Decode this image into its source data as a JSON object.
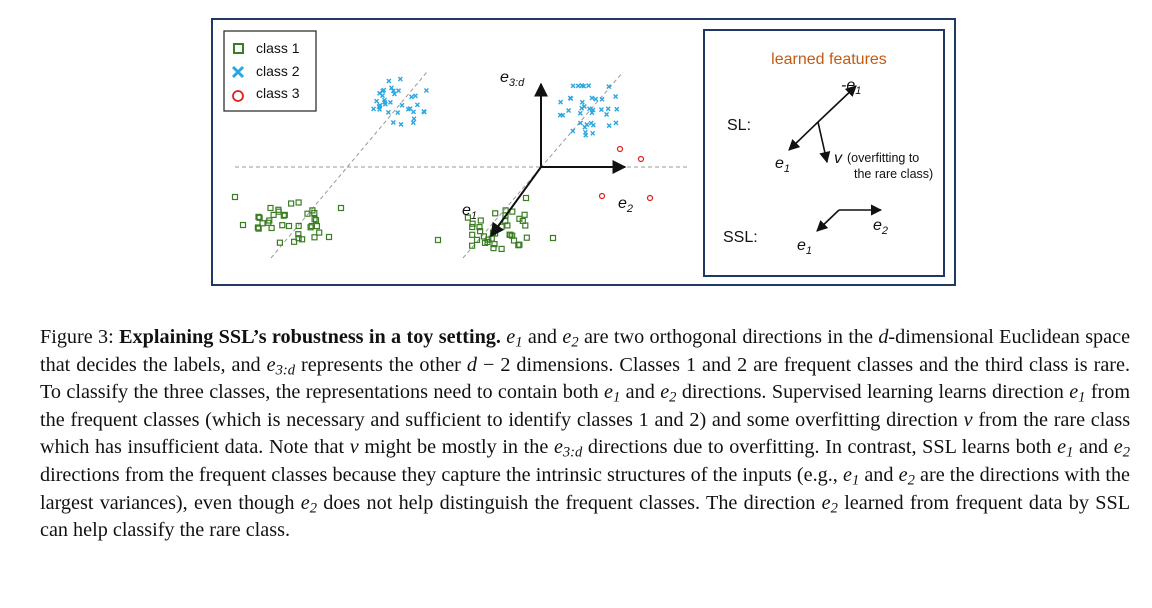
{
  "figure": {
    "legend": [
      {
        "label": "class 1",
        "marker": "square",
        "color": "#3a7d23"
      },
      {
        "label": "class 2",
        "marker": "x",
        "color": "#2aa6e0"
      },
      {
        "label": "class 3",
        "marker": "circle",
        "color": "#e02020"
      }
    ],
    "axis_labels": {
      "e3d_base": "e",
      "e3d_sub": "3:d",
      "e1_base": "e",
      "e1_sub": "1",
      "e2_base": "e",
      "e2_sub": "2"
    },
    "panel": {
      "title": "learned features",
      "title_color": "#c55a11",
      "sl_label": "SL:",
      "ssl_label": "SSL:",
      "neg_e1": "-e",
      "neg_e1_sub": "1",
      "sl_e1": "e",
      "sl_e1_sub": "1",
      "v_label": "v",
      "v_note_line1": "(overfitting to",
      "v_note_line2": "the rare class)",
      "ssl_e2": "e",
      "ssl_e2_sub": "2",
      "ssl_e1": "e",
      "ssl_e1_sub": "1"
    },
    "colors": {
      "frame": "#1f3864",
      "class1": "#3a7d23",
      "class2": "#2aa6e0",
      "class3": "#e02020",
      "dashed": "#999999"
    }
  },
  "caption": {
    "label": "Figure 3:",
    "bold_title": "Explaining SSL’s robustness in a toy setting.",
    "lines": [
      {
        "t": "e1 and e2 are two orthogonal directions in the"
      },
      {
        "t": "d-dimensional Euclidean space that decides the labels, and e3:d represents the other d − 2 dimensions. Classes"
      }
    ],
    "p1": "are two orthogonal directions in the",
    "p2": "-dimensional Euclidean space that decides the labels, and",
    "p3": "represents the other",
    "p3b": "− 2 dimensions. Classes",
    "p4": "1 and 2 are frequent classes and the third class is rare. To classify the three classes, the representations need",
    "p5": "to contain both",
    "p5b": "and",
    "p5c": "directions. Supervised learning learns direction",
    "p5d": "from the frequent classes (which",
    "p6": "is necessary and sufficient to identify classes 1 and 2) and some overfitting direction",
    "p6b": "from the rare class",
    "p7": "which has insufficient data. Note that",
    "p7b": "might be mostly in the",
    "p7c": "directions due to overfitting. In contrast,",
    "p8": "SSL learns both",
    "p8b": "and",
    "p8c": "directions from the frequent classes because they capture the intrinsic structures",
    "p9": "of the inputs (e.g.,",
    "p9b": "and",
    "p9c": "are the directions with the largest variances), even though",
    "p9d": "does not help",
    "p10": "distinguish the frequent classes. The direction",
    "p10b": "learned from frequent data by SSL can help classify the",
    "p11": "rare class.",
    "and": "and",
    "sym_e": "e",
    "sym_d": "d",
    "sym_v": "v",
    "sub_1": "1",
    "sub_2": "2",
    "sub_3d": "3:d"
  }
}
